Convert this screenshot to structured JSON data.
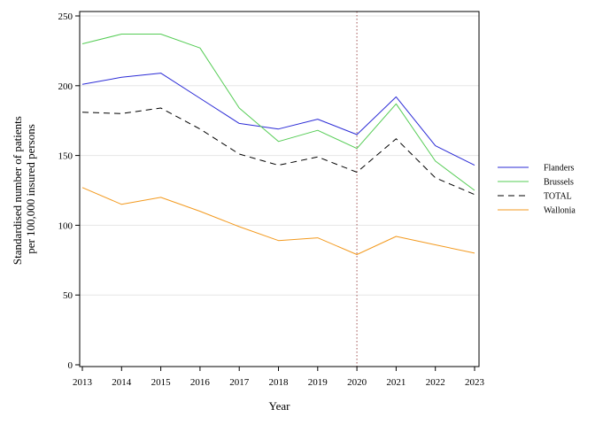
{
  "chart_data": {
    "type": "line",
    "xlabel": "Year",
    "ylabel_lines": [
      "Standardised number of patients",
      "per 100,000 insured persons"
    ],
    "x": [
      2013,
      2014,
      2015,
      2016,
      2017,
      2018,
      2019,
      2020,
      2021,
      2022,
      2023
    ],
    "xlim": [
      2013,
      2023
    ],
    "ylim": [
      0,
      250
    ],
    "yticks": [
      0,
      50,
      100,
      150,
      200,
      250
    ],
    "grid": "horizontal",
    "legend_position": "right",
    "reference_line": {
      "x": 2020,
      "style": "dotted",
      "color": "#b07070"
    },
    "series": [
      {
        "name": "Flanders",
        "color": "#2b2bd6",
        "dash": "solid",
        "values": [
          201,
          206,
          209,
          191,
          173,
          169,
          176,
          165,
          192,
          157,
          143
        ]
      },
      {
        "name": "Brussels",
        "color": "#54cc54",
        "dash": "solid",
        "values": [
          230,
          237,
          237,
          227,
          184,
          160,
          168,
          155,
          187,
          146,
          125
        ]
      },
      {
        "name": "TOTAL",
        "color": "#000000",
        "dash": "dashed",
        "values": [
          181,
          180,
          184,
          169,
          151,
          143,
          149,
          138,
          162,
          134,
          122
        ]
      },
      {
        "name": "Wallonia",
        "color": "#f39a1f",
        "dash": "solid",
        "values": [
          127,
          115,
          120,
          110,
          99,
          89,
          91,
          79,
          92,
          86,
          80
        ]
      }
    ]
  }
}
